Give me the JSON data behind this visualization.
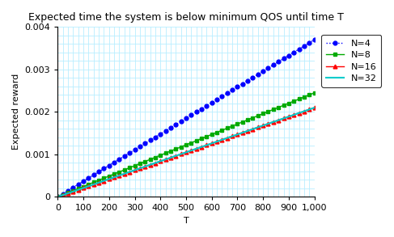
{
  "title": "Expected time the system is below minimum QOS until time T",
  "xlabel": "T",
  "ylabel": "Expected reward",
  "xlim": [
    0,
    1000
  ],
  "ylim": [
    0,
    0.004
  ],
  "series": [
    {
      "label": "N=4",
      "color": "#0000ff",
      "marker": "o",
      "linestyle": ":",
      "markersize": 3.5,
      "slope": 3.7e-06,
      "lw": 1.0
    },
    {
      "label": "N=8",
      "color": "#00aa00",
      "marker": "s",
      "linestyle": "-",
      "markersize": 3.5,
      "slope": 2.45e-06,
      "lw": 1.0
    },
    {
      "label": "N=16",
      "color": "#ff0000",
      "marker": "^",
      "linestyle": "-",
      "markersize": 3.5,
      "slope": 2.1e-06,
      "lw": 1.0
    },
    {
      "label": "N=32",
      "color": "#00cccc",
      "marker": "none",
      "linestyle": "-",
      "markersize": 3,
      "slope": 2.1e-06,
      "lw": 1.5
    }
  ],
  "xticks": [
    0,
    100,
    200,
    300,
    400,
    500,
    600,
    700,
    800,
    900,
    1000
  ],
  "xticklabels": [
    "0",
    "100",
    "200",
    "300",
    "400",
    "500",
    "600",
    "700",
    "800",
    "900",
    "1,000"
  ],
  "yticks": [
    0,
    0.001,
    0.002,
    0.003,
    0.004
  ],
  "yticklabels": [
    "0",
    "0.001",
    "0.002",
    "0.003",
    "0.004"
  ],
  "grid_color": "#b8eeff",
  "background_color": "#ffffff",
  "title_fontsize": 9,
  "label_fontsize": 8,
  "tick_fontsize": 8,
  "minor_xtick_step": 20,
  "minor_ytick_step": 0.0002
}
